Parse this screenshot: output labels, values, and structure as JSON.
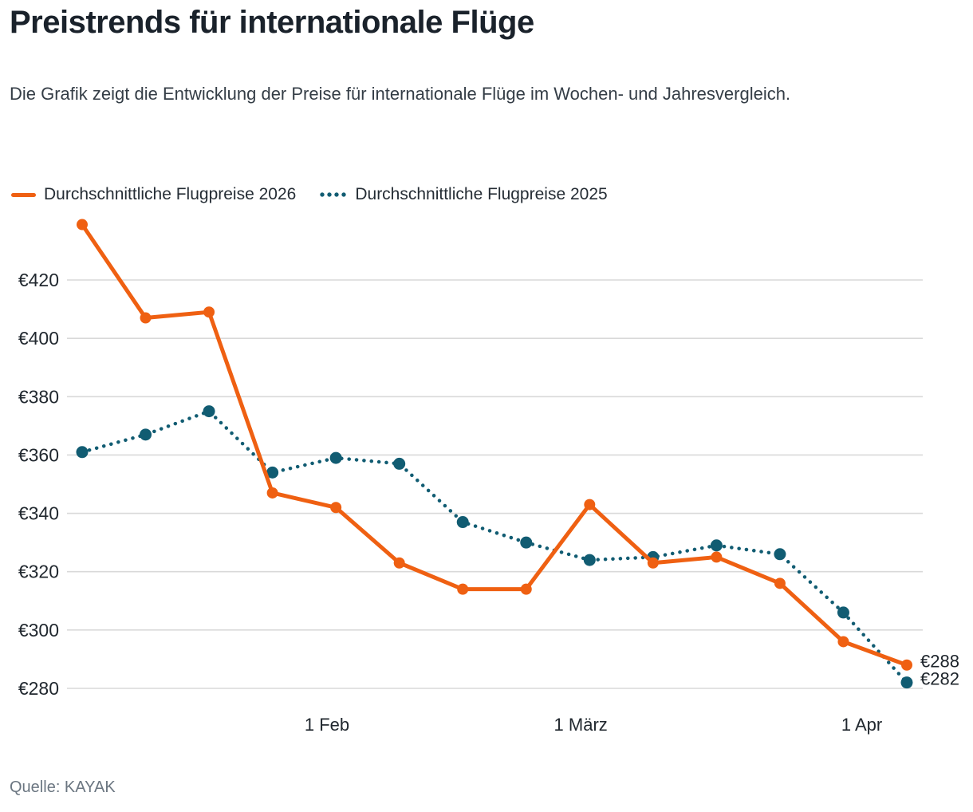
{
  "page": {
    "title": "Preistrends für internationale Flüge",
    "subtitle": "Die Grafik zeigt die Entwicklung der Preise für internationale Flüge im Wochen- und Jahresvergleich.",
    "source": "Quelle: KAYAK"
  },
  "colors": {
    "series_2026": "#ef6012",
    "series_2025": "#115c72",
    "gridline": "#d9d9d9",
    "axis_text": "#21282f",
    "end_label_text": "#1d242b"
  },
  "legend": [
    {
      "label": "Durchschnittliche Flugpreise 2026",
      "color": "#ef6012",
      "line_style": "solid"
    },
    {
      "label": "Durchschnittliche Flugpreise 2025",
      "color": "#115c72",
      "line_style": "dotted"
    }
  ],
  "chart_data": {
    "type": "line",
    "title": "Preistrends für internationale Flüge",
    "grid": "horizontal",
    "legend_position": "top",
    "x_axis": {
      "ticks": [
        {
          "label": "1 Feb",
          "index": 3.86
        },
        {
          "label": "1 März",
          "index": 7.86
        },
        {
          "label": "1 Apr",
          "index": 12.29
        }
      ]
    },
    "y_axis": {
      "prefix": "€",
      "ticks": [
        280,
        300,
        320,
        340,
        360,
        380,
        400,
        420
      ],
      "lim": [
        276,
        444
      ]
    },
    "series": [
      {
        "name": "Durchschnittliche Flugpreise 2026",
        "color": "#ef6012",
        "line_style": "solid",
        "end_label": "€288",
        "values": [
          439,
          407,
          409,
          347,
          342,
          323,
          314,
          314,
          343,
          323,
          325,
          316,
          296,
          288
        ]
      },
      {
        "name": "Durchschnittliche Flugpreise 2025",
        "color": "#115c72",
        "line_style": "dotted",
        "end_label": "€282",
        "values": [
          361,
          367,
          375,
          354,
          359,
          357,
          337,
          330,
          324,
          325,
          329,
          326,
          306,
          282
        ]
      }
    ]
  }
}
